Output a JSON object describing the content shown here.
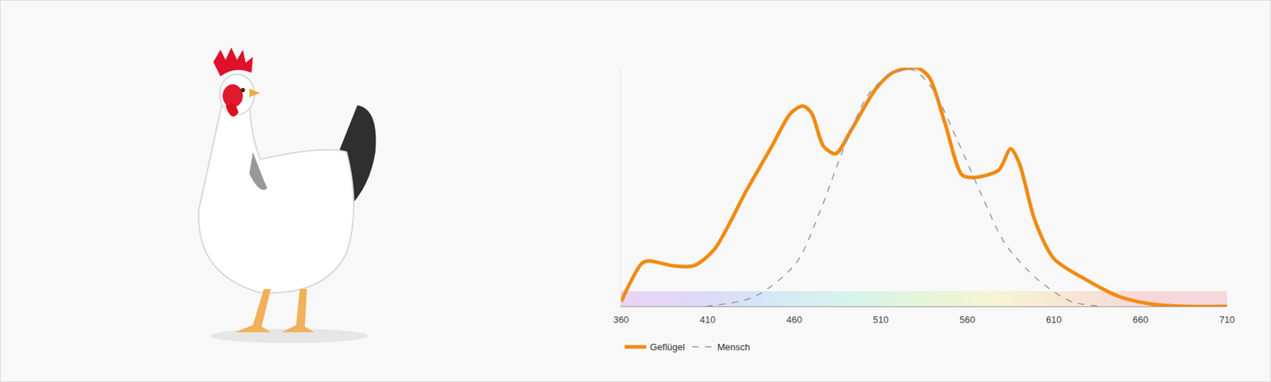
{
  "chart_data": {
    "type": "line",
    "series": [
      {
        "name": "Geflügel",
        "color": "#f28a12",
        "line_style": "solid",
        "x": [
          360,
          372,
          376,
          390,
          402,
          414,
          432,
          447,
          458,
          465,
          470,
          477,
          484,
          493,
          507,
          517,
          531,
          538,
          547,
          557,
          564,
          578,
          585,
          590,
          599,
          610,
          629,
          648,
          666,
          685,
          710
        ],
        "values": [
          2,
          18,
          19,
          17,
          17,
          24,
          48,
          67,
          81,
          84,
          81,
          67,
          64,
          74,
          91,
          98,
          100,
          96,
          77,
          55,
          54,
          57,
          66,
          60,
          36,
          20,
          11,
          4,
          1,
          0,
          0
        ]
      },
      {
        "name": "Mensch",
        "color": "#9a9a9a",
        "line_style": "dash",
        "x": [
          409,
          437,
          461,
          475,
          489,
          503,
          517,
          529,
          540,
          554,
          568,
          582,
          601,
          620,
          638
        ],
        "values": [
          0,
          4,
          18,
          40,
          67,
          89,
          98,
          99,
          91,
          70,
          47,
          26,
          11,
          2,
          0
        ]
      }
    ],
    "xlim": [
      360,
      710
    ],
    "xticks": [
      360,
      410,
      460,
      510,
      560,
      610,
      660,
      710
    ],
    "ylim": [
      0,
      100
    ],
    "yticks": [],
    "tick_labels": "x",
    "grid": false,
    "legend": "bottom left"
  }
}
